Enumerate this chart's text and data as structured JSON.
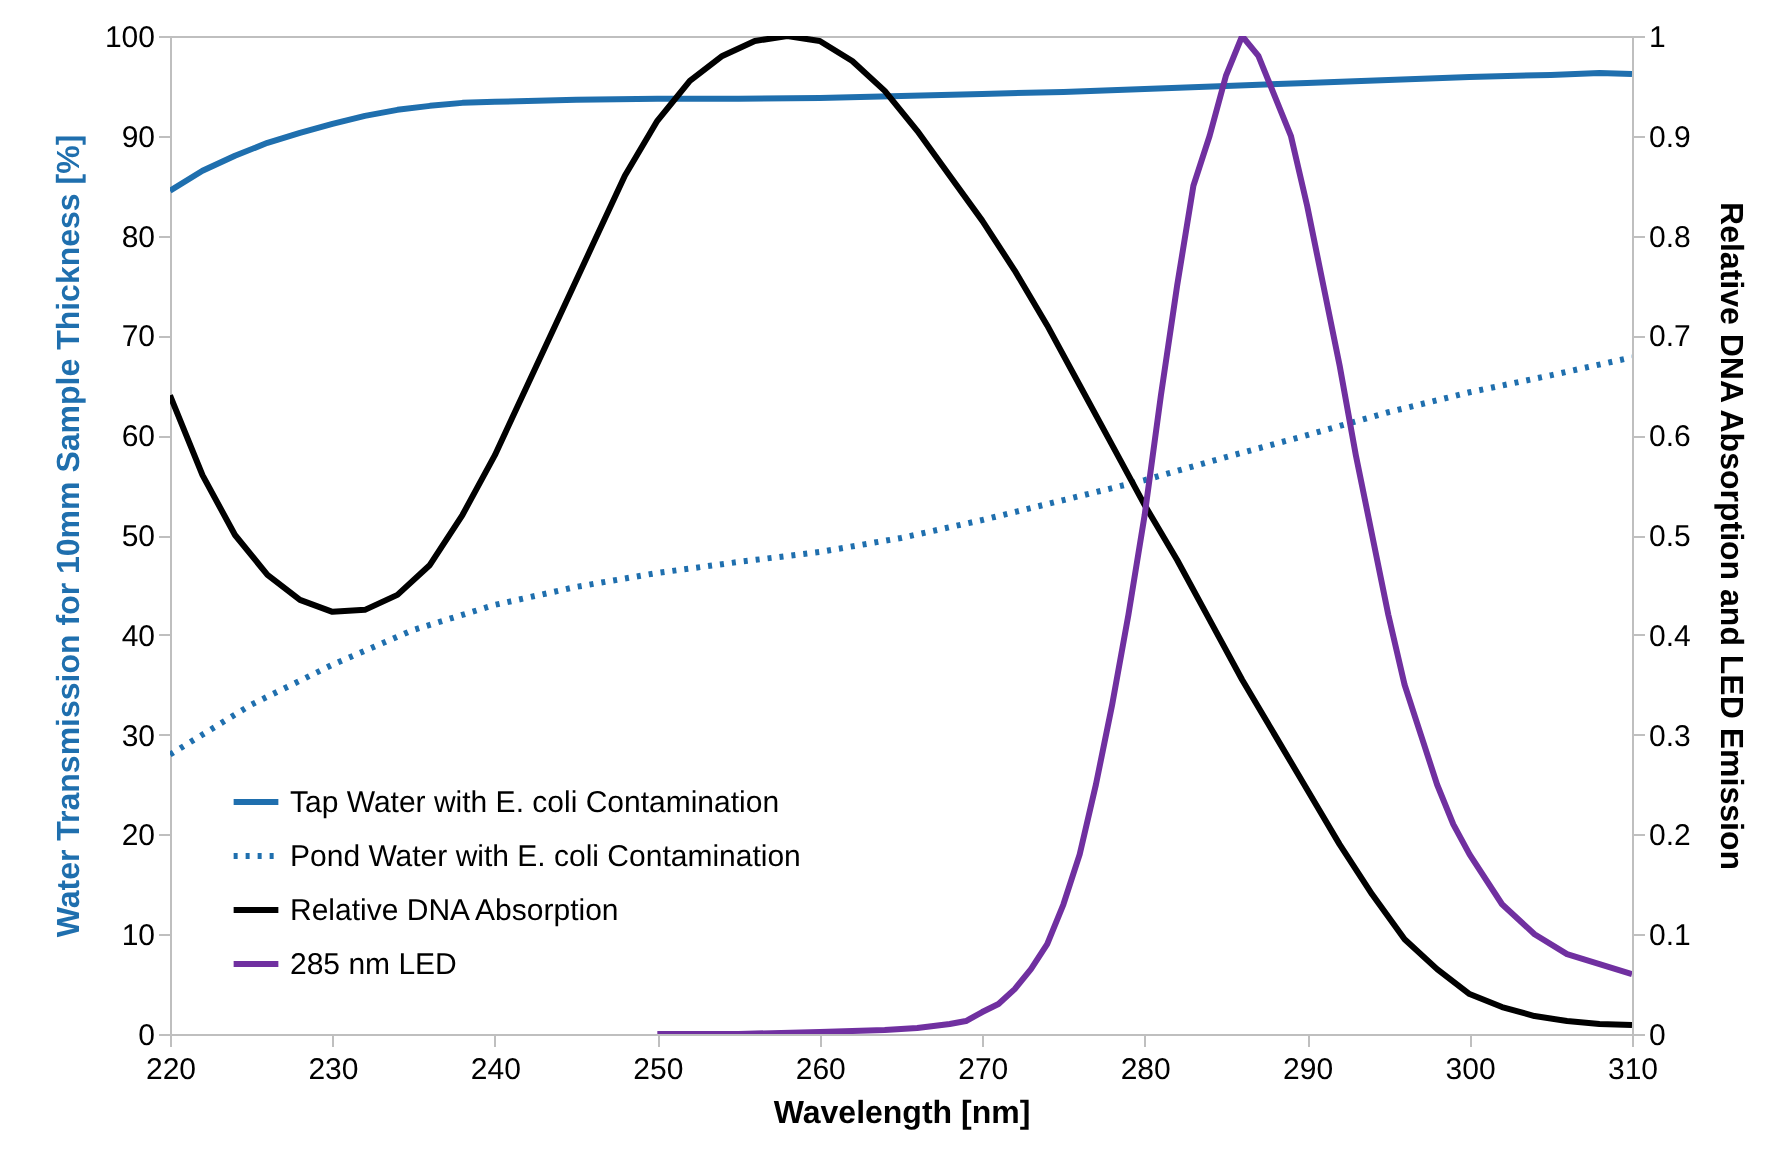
{
  "chart_data": {
    "type": "line",
    "xlabel": "Wavelength [nm]",
    "ylabel": "Water Transmission for 10mm Sample Thickness  [%]",
    "y2label": "Relative DNA Absorption and LED Emission",
    "xlim": [
      220,
      310
    ],
    "xticks": [
      220,
      230,
      240,
      250,
      260,
      270,
      280,
      290,
      300,
      310
    ],
    "ylim": [
      0,
      100
    ],
    "yticks": [
      0,
      10,
      20,
      30,
      40,
      50,
      60,
      70,
      80,
      90,
      100
    ],
    "y2lim": [
      0,
      1
    ],
    "y2ticks": [
      0,
      0.1,
      0.2,
      0.3,
      0.4,
      0.5,
      0.6,
      0.7,
      0.8,
      0.9,
      1
    ],
    "legend": "bottom left",
    "marker": "none",
    "series": [
      {
        "name": "Tap Water with E. coli Contamination",
        "color": "#1f6fae",
        "line_style": "solid",
        "axis": "y",
        "x": [
          220,
          222,
          224,
          226,
          228,
          230,
          232,
          234,
          236,
          238,
          240,
          245,
          250,
          255,
          260,
          265,
          270,
          275,
          280,
          285,
          290,
          295,
          300,
          305,
          308,
          310
        ],
        "values": [
          84.5,
          86.5,
          88,
          89.3,
          90.3,
          91.2,
          92,
          92.6,
          93,
          93.3,
          93.4,
          93.6,
          93.7,
          93.7,
          93.8,
          94,
          94.2,
          94.4,
          94.7,
          95,
          95.3,
          95.6,
          95.9,
          96.1,
          96.3,
          96.2
        ]
      },
      {
        "name": "Pond Water with E. coli Contamination",
        "color": "#1f6fae",
        "line_style": "dotted",
        "axis": "y",
        "x": [
          220,
          225,
          230,
          235,
          240,
          245,
          250,
          255,
          260,
          265,
          270,
          275,
          280,
          285,
          290,
          295,
          300,
          305,
          310
        ],
        "values": [
          28,
          33,
          37,
          40.5,
          43,
          44.8,
          46.2,
          47.3,
          48.3,
          49.7,
          51.5,
          53.5,
          55.5,
          57.8,
          60,
          62.3,
          64.3,
          66,
          67.8
        ]
      },
      {
        "name": "Relative DNA Absorption",
        "color": "#000000",
        "line_style": "solid",
        "axis": "y2",
        "x": [
          220,
          222,
          224,
          226,
          228,
          230,
          232,
          234,
          236,
          238,
          240,
          242,
          244,
          246,
          248,
          250,
          252,
          254,
          256,
          258,
          260,
          262,
          264,
          266,
          268,
          270,
          272,
          274,
          276,
          278,
          280,
          282,
          284,
          286,
          288,
          290,
          292,
          294,
          296,
          298,
          300,
          302,
          304,
          306,
          308,
          310
        ],
        "values": [
          0.64,
          0.56,
          0.5,
          0.46,
          0.435,
          0.423,
          0.425,
          0.44,
          0.47,
          0.52,
          0.58,
          0.65,
          0.72,
          0.79,
          0.86,
          0.915,
          0.955,
          0.98,
          0.995,
          1,
          0.995,
          0.975,
          0.945,
          0.905,
          0.86,
          0.815,
          0.765,
          0.71,
          0.65,
          0.59,
          0.53,
          0.475,
          0.415,
          0.355,
          0.3,
          0.245,
          0.19,
          0.14,
          0.095,
          0.065,
          0.04,
          0.027,
          0.018,
          0.013,
          0.01,
          0.009
        ]
      },
      {
        "name": "285 nm LED",
        "color": "#7030a0",
        "line_style": "solid",
        "axis": "y2",
        "x": [
          250,
          255,
          260,
          264,
          266,
          268,
          269,
          270,
          271,
          272,
          273,
          274,
          275,
          276,
          277,
          278,
          279,
          280,
          281,
          282,
          283,
          284,
          285,
          286,
          287,
          288,
          289,
          290,
          291,
          292,
          293,
          294,
          295,
          296,
          297,
          298,
          299,
          300,
          302,
          304,
          306,
          308,
          310
        ],
        "values": [
          0,
          0,
          0.002,
          0.004,
          0.006,
          0.01,
          0.013,
          0.022,
          0.03,
          0.045,
          0.065,
          0.09,
          0.13,
          0.18,
          0.25,
          0.33,
          0.42,
          0.52,
          0.64,
          0.75,
          0.85,
          0.9,
          0.96,
          1,
          0.98,
          0.94,
          0.9,
          0.83,
          0.75,
          0.67,
          0.58,
          0.5,
          0.42,
          0.35,
          0.3,
          0.25,
          0.21,
          0.18,
          0.13,
          0.1,
          0.08,
          0.07,
          0.06
        ]
      }
    ]
  }
}
